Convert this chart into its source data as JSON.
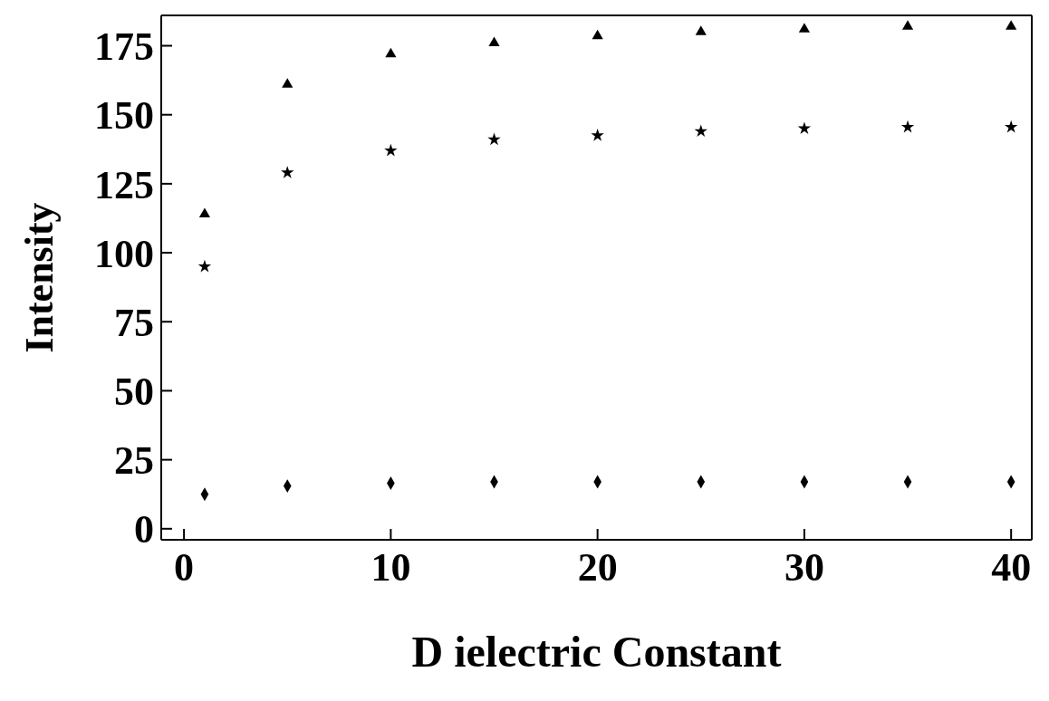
{
  "chart_data": {
    "type": "scatter",
    "xlabel": "D ielectric Constant",
    "ylabel": "Intensity",
    "x": [
      1,
      5,
      10,
      15,
      20,
      25,
      30,
      35,
      40
    ],
    "series": [
      {
        "color": "#000000",
        "marker": "triangle",
        "values": [
          114,
          161,
          172,
          176,
          178.5,
          180,
          181,
          182,
          182
        ]
      },
      {
        "color": "#000000",
        "marker": "star",
        "values": [
          95,
          129,
          137,
          141,
          142.5,
          144,
          145,
          145.5,
          145.5
        ]
      },
      {
        "color": "#000000",
        "marker": "diamond",
        "values": [
          12.5,
          15.5,
          16.5,
          17,
          17,
          17,
          17,
          17,
          17
        ]
      }
    ],
    "xlim": [
      -1.1,
      41
    ],
    "ylim": [
      -4,
      186
    ],
    "xticks": [
      0,
      10,
      20,
      30,
      40
    ],
    "yticks": [
      0,
      25,
      50,
      75,
      100,
      125,
      150,
      175
    ]
  }
}
